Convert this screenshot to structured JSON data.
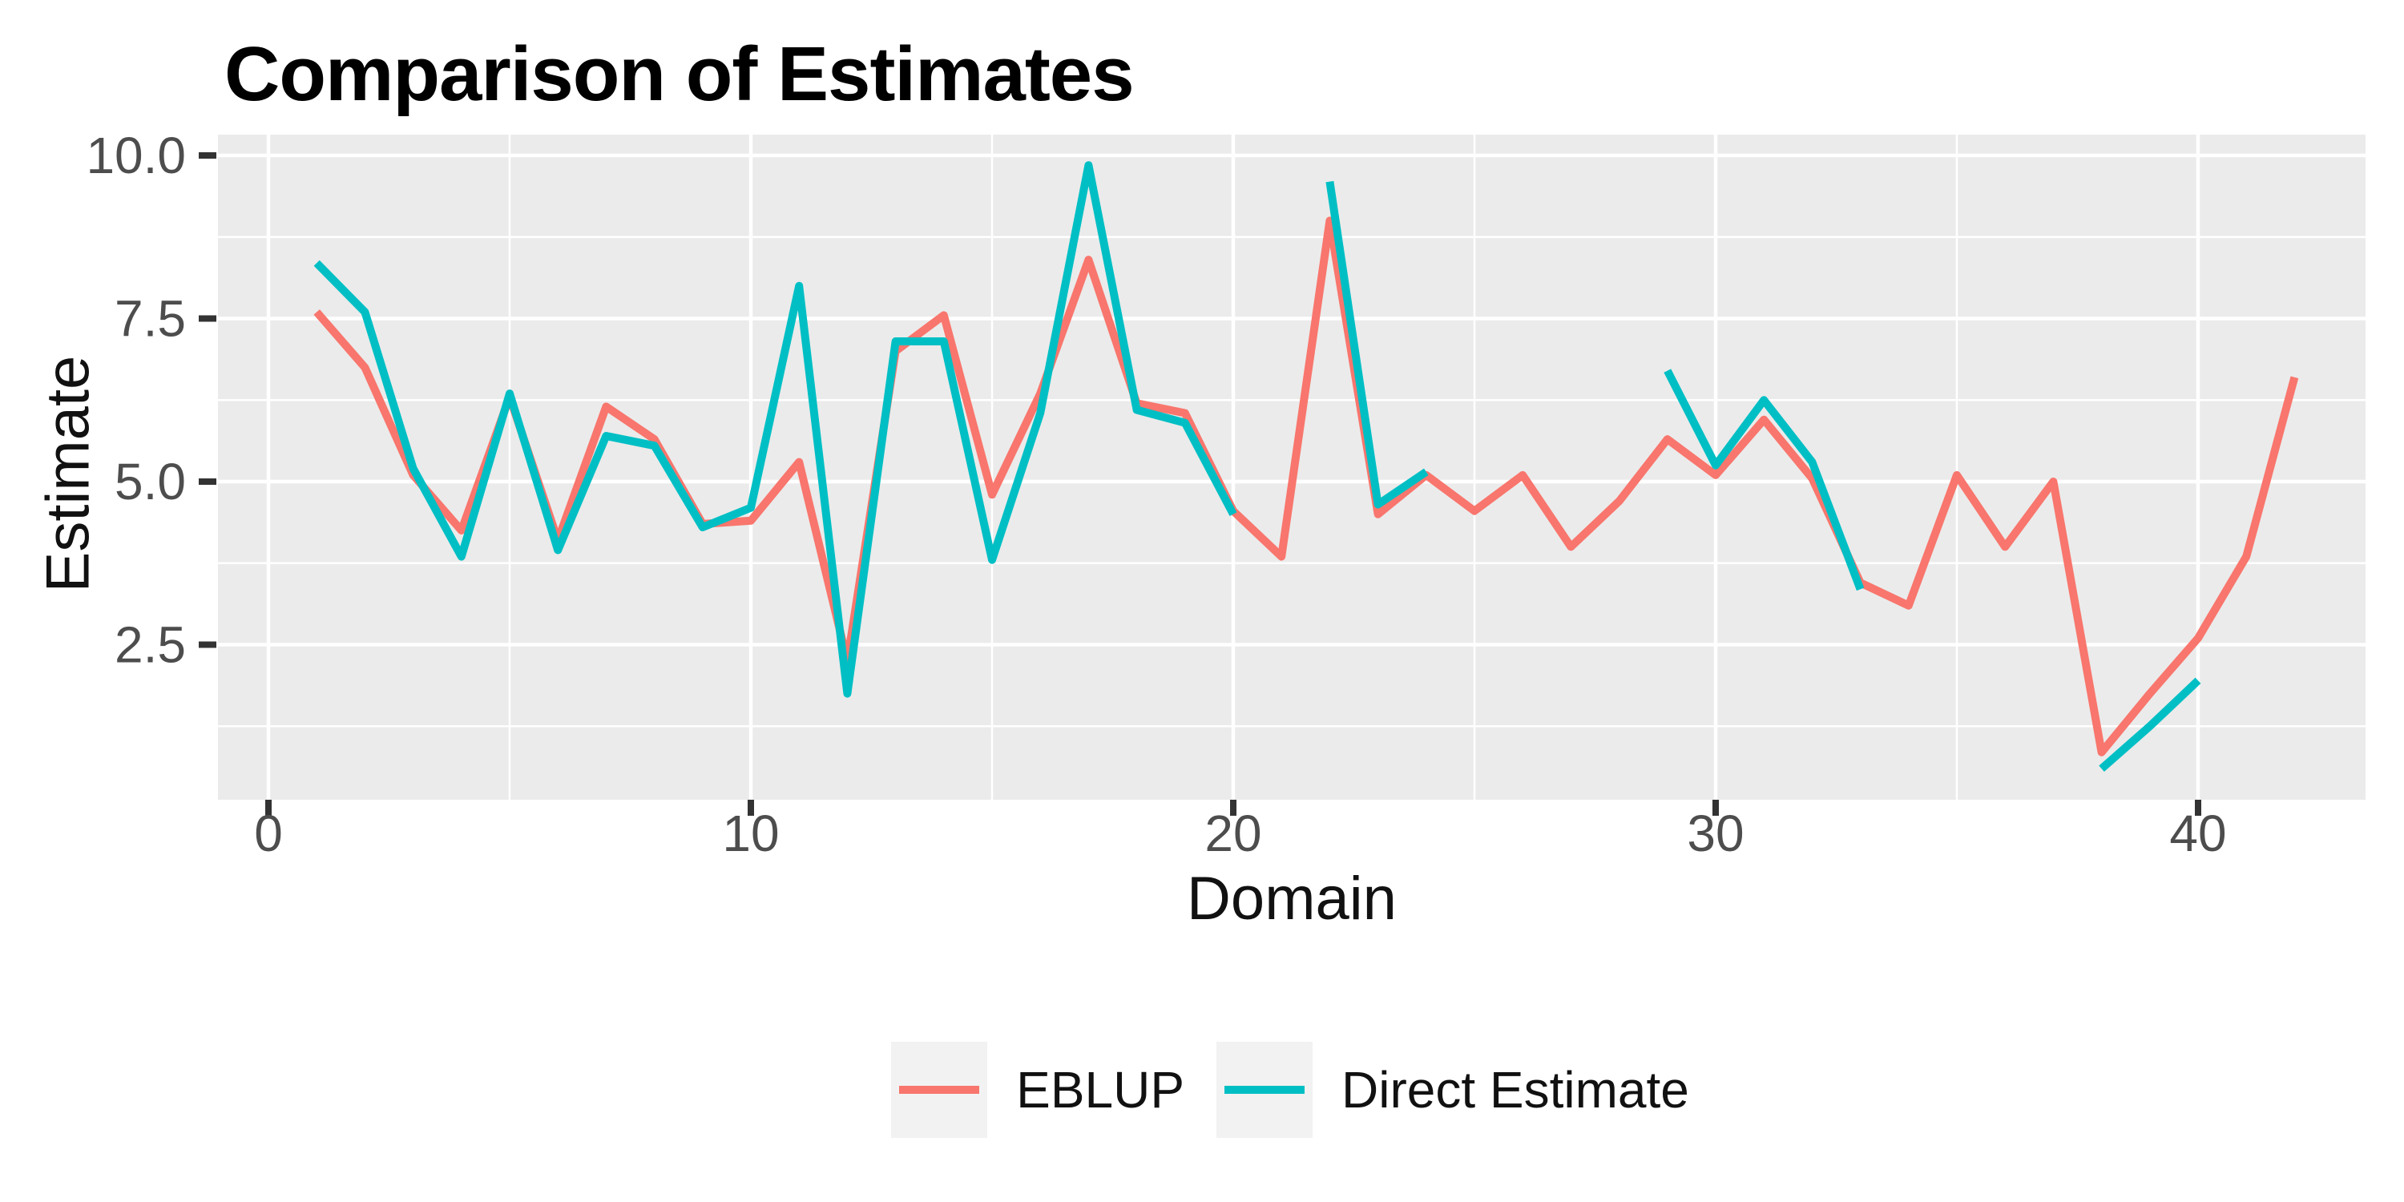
{
  "title": "Comparison of Estimates",
  "colors": {
    "eblup": "#F8766D",
    "direct_estimate": "#00BFC4",
    "panel_background": "#EBEBEB",
    "gridline": "#FFFFFF",
    "tick_mark": "#333333",
    "tick_label": "#4D4D4D",
    "axis_title": "#111111",
    "title_text": "#000000",
    "legend_key_background": "#F2F2F2"
  },
  "chart_data": {
    "type": "line",
    "title": "Comparison of Estimates",
    "xlabel": "Domain",
    "ylabel": "Estimate",
    "x_ticks": [
      0,
      10,
      20,
      30,
      40
    ],
    "x_minor_ticks": [
      5,
      15,
      25,
      35
    ],
    "y_ticks": [
      2.5,
      5.0,
      7.5,
      10.0
    ],
    "y_tick_labels": [
      "2.5",
      "5.0",
      "7.5",
      "10.0"
    ],
    "y_minor_ticks": [
      1.25,
      3.75,
      6.25,
      8.75
    ],
    "xlim": [
      -1.1,
      43.5
    ],
    "ylim": [
      0.1,
      10.3
    ],
    "grid": "white major and minor gridlines on gray panel",
    "legend_position": "bottom",
    "series": [
      {
        "name": "EBLUP",
        "color": "#F8766D",
        "segments": [
          {
            "x": [
              1,
              2,
              3,
              4,
              5,
              6,
              7,
              8,
              9,
              10,
              11,
              12,
              13,
              14,
              15,
              16,
              17,
              18,
              19,
              20,
              21,
              22,
              23,
              24,
              25,
              26,
              27,
              28,
              29,
              30,
              31,
              32,
              33,
              34,
              35,
              36,
              37,
              38,
              39,
              40,
              41,
              42
            ],
            "y": [
              7.6,
              6.75,
              5.1,
              4.25,
              6.3,
              4.1,
              6.15,
              5.65,
              4.35,
              4.4,
              5.3,
              2.25,
              7.0,
              7.55,
              4.8,
              6.35,
              8.4,
              6.2,
              6.05,
              4.55,
              3.85,
              9.0,
              4.5,
              5.1,
              4.55,
              5.1,
              4.0,
              4.7,
              5.65,
              5.1,
              5.95,
              5.05,
              3.45,
              3.1,
              5.1,
              4.0,
              5.0,
              0.85,
              1.75,
              2.6,
              3.85,
              6.6
            ]
          }
        ]
      },
      {
        "name": "Direct Estimate",
        "color": "#00BFC4",
        "segments": [
          {
            "x": [
              1,
              2,
              3,
              4,
              5,
              6,
              7,
              8,
              9,
              10,
              11,
              12,
              13,
              14,
              15,
              16,
              17,
              18,
              19,
              20
            ],
            "y": [
              8.35,
              7.6,
              5.2,
              3.85,
              6.35,
              3.95,
              5.7,
              5.55,
              4.3,
              4.6,
              8.0,
              1.75,
              7.15,
              7.15,
              3.8,
              6.05,
              9.85,
              6.1,
              5.9,
              4.5
            ]
          },
          {
            "x": [
              22,
              23,
              24
            ],
            "y": [
              9.6,
              4.65,
              5.15
            ]
          },
          {
            "x": [
              29,
              30,
              31,
              32,
              33
            ],
            "y": [
              6.7,
              5.25,
              6.25,
              5.3,
              3.35
            ]
          },
          {
            "x": [
              38,
              39,
              40
            ],
            "y": [
              0.6,
              1.25,
              1.95
            ]
          }
        ]
      }
    ]
  },
  "legend": {
    "items": [
      {
        "label": "EBLUP",
        "color": "#F8766D"
      },
      {
        "label": "Direct Estimate",
        "color": "#00BFC4"
      }
    ]
  }
}
